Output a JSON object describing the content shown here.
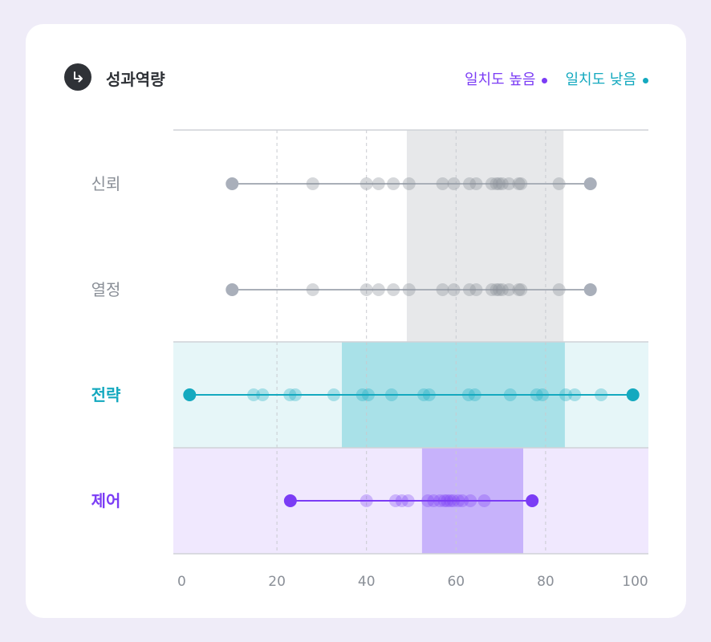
{
  "header": {
    "title": "성과역량",
    "icon": "arrow-turn-down-right-icon"
  },
  "legend": [
    {
      "label": "일치도 높음",
      "color": "#7b3cf5"
    },
    {
      "label": "일치도 낮음",
      "color": "#14a9bf"
    }
  ],
  "chart_data": {
    "type": "scatter",
    "title": "성과역량",
    "xlim": [
      0,
      100
    ],
    "xticks": [
      "0",
      "20",
      "40",
      "60",
      "80",
      "100"
    ],
    "xtick_values": [
      0,
      20,
      40,
      60,
      80,
      100
    ],
    "grid": "vertical dashed",
    "legend_placement": "top-right",
    "series": [
      {
        "name": "신뢰",
        "color": "#9aa0a8",
        "label_color": "#8a8f97",
        "range_band": [
          49,
          84
        ],
        "values": [
          10,
          28,
          40,
          42.7,
          46,
          49.5,
          57,
          59.5,
          63,
          64.5,
          68,
          69,
          69.6,
          70.3,
          71.8,
          74,
          74.5,
          83,
          90
        ]
      },
      {
        "name": "열정",
        "color": "#9aa0a8",
        "label_color": "#8a8f97",
        "range_band": [
          49,
          84
        ],
        "values": [
          10,
          28,
          40,
          42.7,
          46,
          49.5,
          57,
          59.5,
          63,
          64.5,
          68,
          69,
          69.6,
          70.3,
          71.8,
          74,
          74.5,
          83,
          90
        ]
      },
      {
        "name": "전략",
        "color": "#14a9bf",
        "label_color": "#14a9bf",
        "row_bg": "#e6f6f8",
        "band_color": "#a9e1e8",
        "range_band": [
          34.5,
          84.3
        ],
        "values": [
          0.5,
          14.8,
          16.8,
          22.9,
          24.1,
          32.7,
          39.1,
          40.4,
          45.6,
          52.8,
          54,
          62.8,
          64.2,
          72.1,
          78,
          79.3,
          84.5,
          86.5,
          92.4,
          99.5
        ]
      },
      {
        "name": "제어",
        "color": "#7b3cf5",
        "label_color": "#7b3cf5",
        "row_bg": "#f0e8fe",
        "band_color": "#c7b2fb",
        "range_band": [
          52.4,
          75
        ],
        "values": [
          23,
          40,
          46.5,
          47.9,
          49.3,
          53.7,
          55,
          56.4,
          57.4,
          58,
          58.7,
          59.4,
          60.5,
          61.4,
          63.2,
          66.3,
          77
        ]
      }
    ]
  }
}
